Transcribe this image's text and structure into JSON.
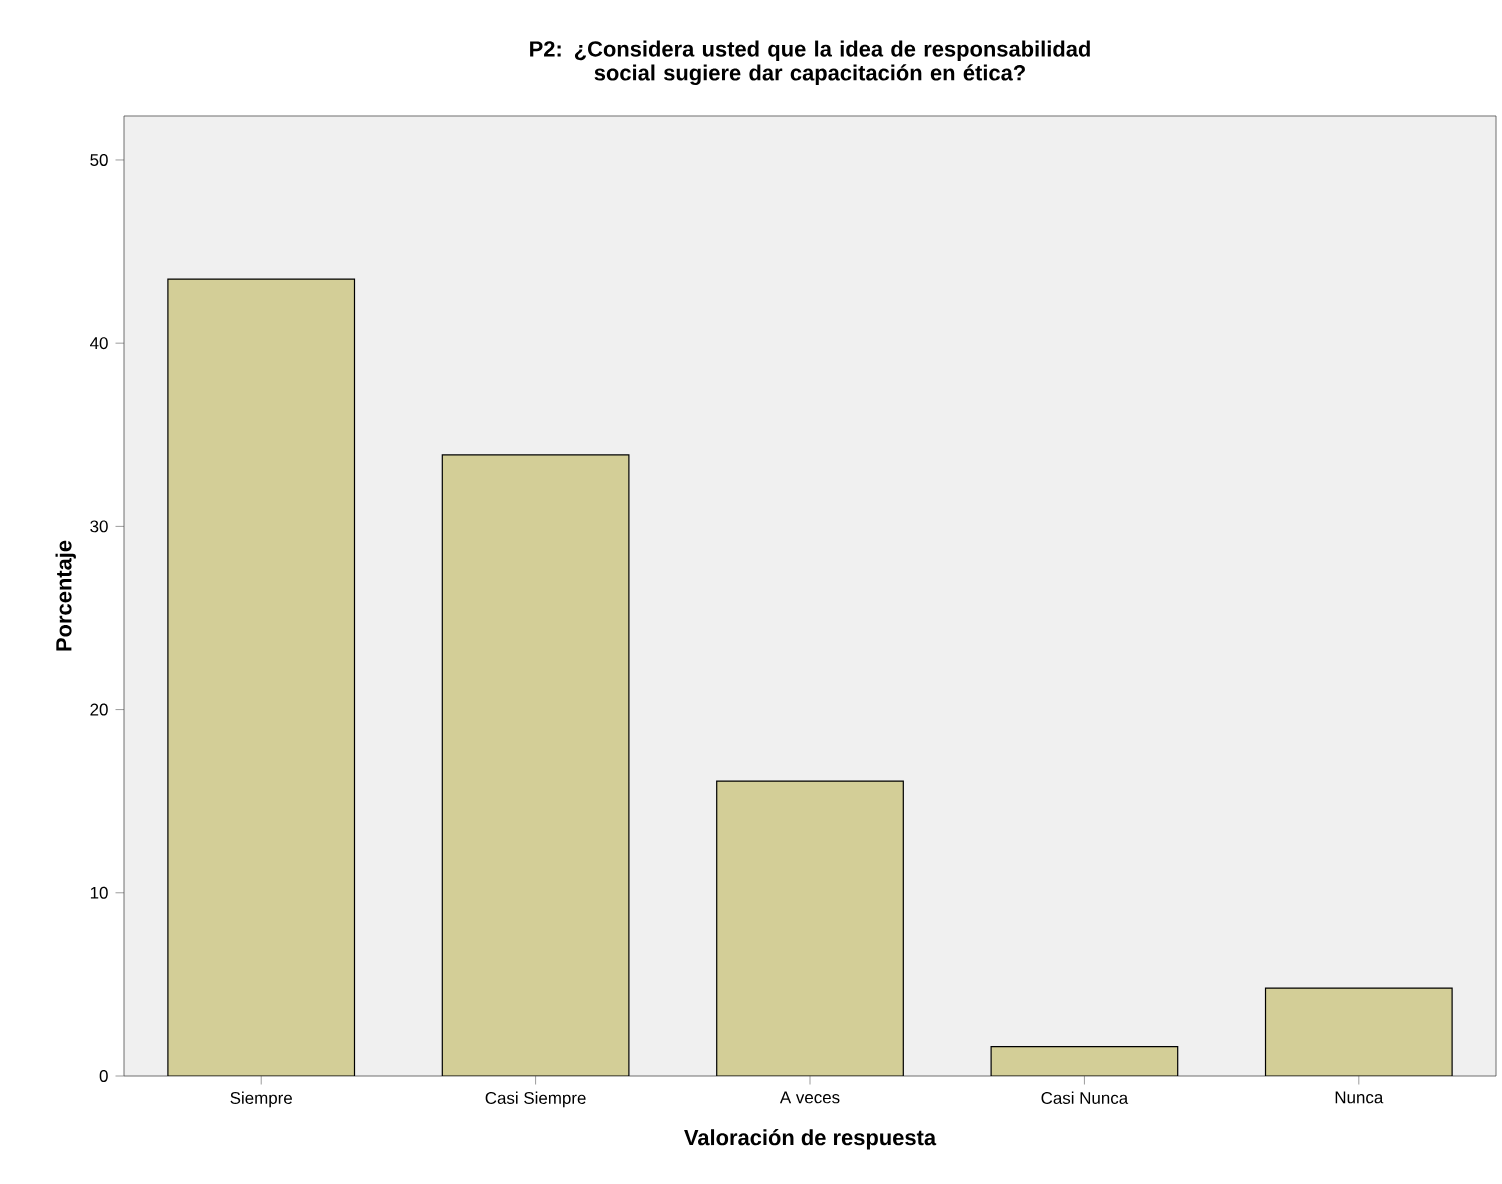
{
  "chart_data": {
    "type": "bar",
    "title": "P2: ¿Considera usted que la idea de responsabilidad social sugiere dar capacitación en ética?",
    "xlabel": "Valoración de respuesta",
    "ylabel": "Porcentaje",
    "categories": [
      "Siempre",
      "Casi Siempre",
      "A veces",
      "Casi Nunca",
      "Nunca"
    ],
    "values": [
      43.5,
      33.9,
      16.1,
      1.6,
      4.8
    ],
    "color": "#d3ce97",
    "ylim": [
      0,
      52.4
    ],
    "yticks": [
      0,
      10,
      20,
      30,
      40,
      50
    ],
    "grid": false
  }
}
